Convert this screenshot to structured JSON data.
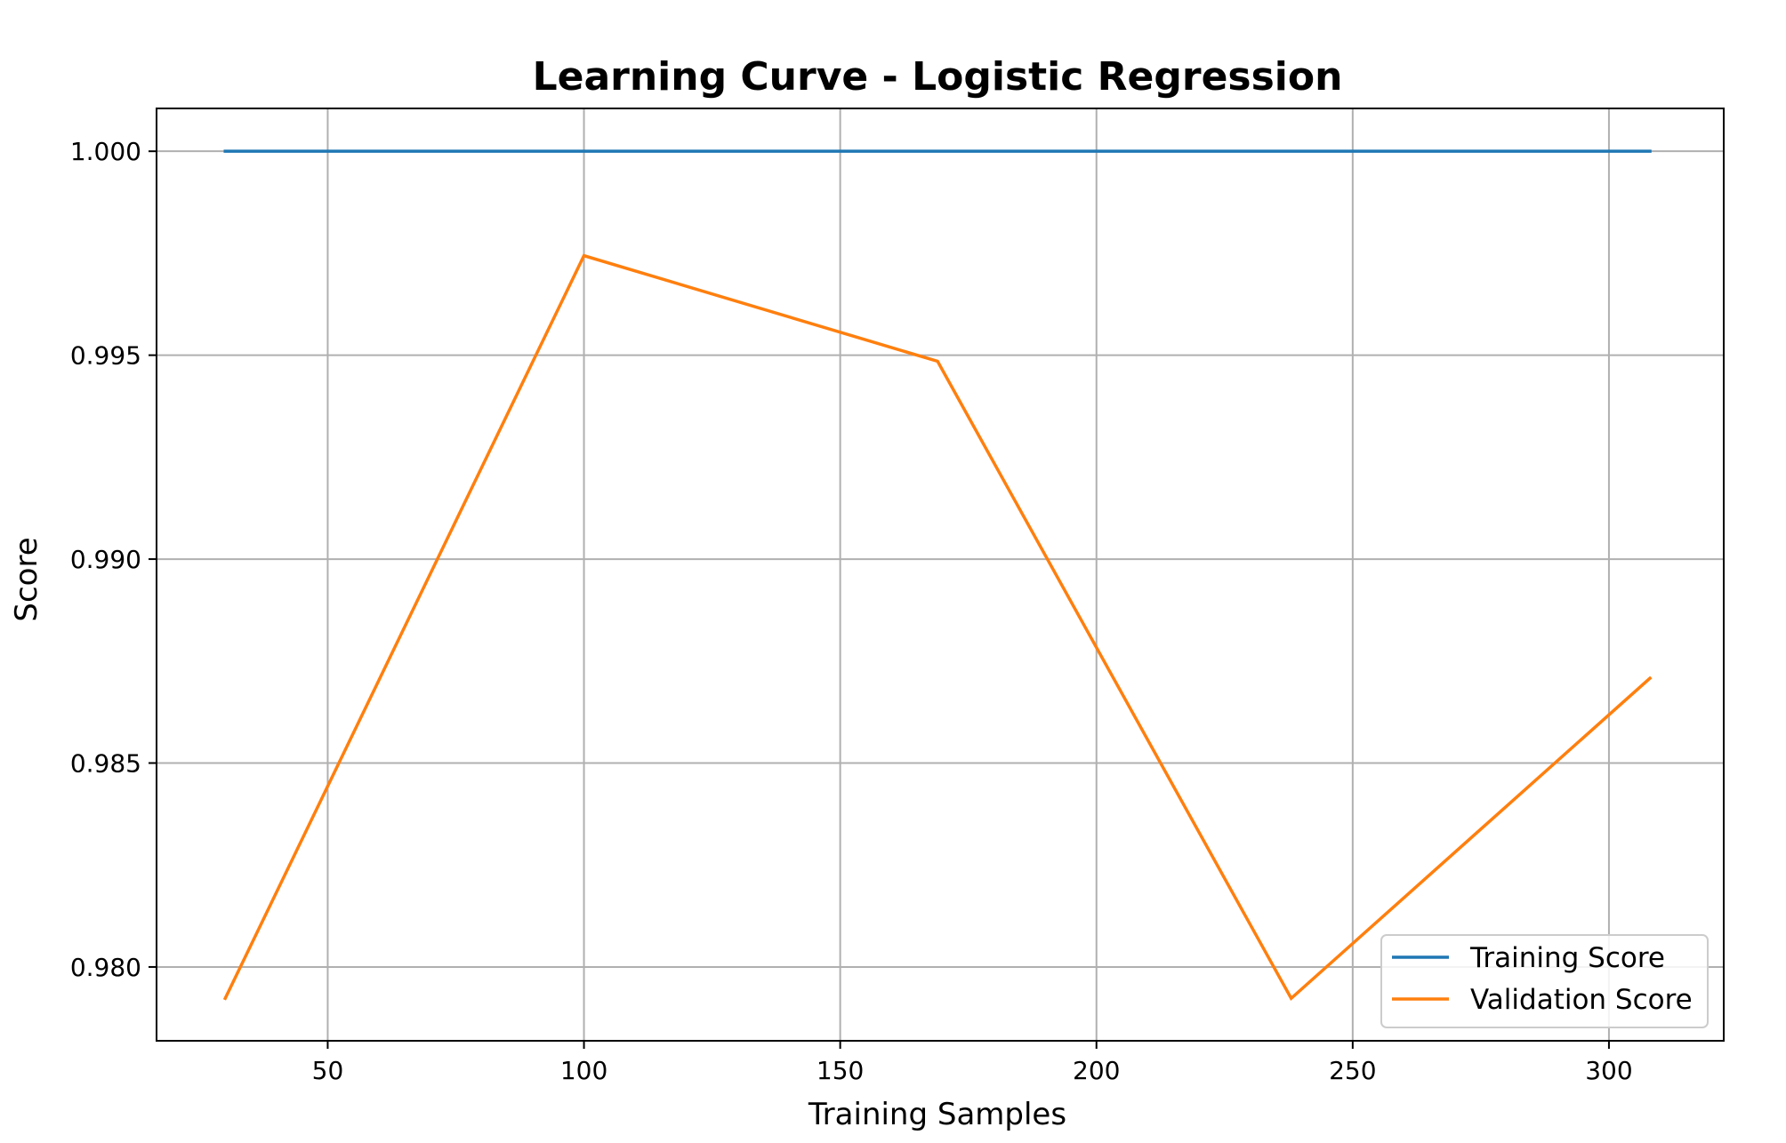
{
  "chart_data": {
    "type": "line",
    "title": "Learning Curve - Logistic Regression",
    "xlabel": "Training Samples",
    "ylabel": "Score",
    "xlim": [
      16.6,
      322.4
    ],
    "ylim": [
      0.97819,
      1.00105
    ],
    "x": [
      30,
      100,
      169,
      238,
      308
    ],
    "x_ticks": [
      50,
      100,
      150,
      200,
      250,
      300
    ],
    "x_tick_labels": [
      "50",
      "100",
      "150",
      "200",
      "250",
      "300"
    ],
    "y_ticks": [
      0.98,
      0.985,
      0.99,
      0.995,
      1.0
    ],
    "y_tick_labels": [
      "0.980",
      "0.985",
      "0.990",
      "0.995",
      "1.000"
    ],
    "grid": true,
    "legend_position": "lower right",
    "series": [
      {
        "name": "Training Score",
        "color": "#1f77b4",
        "values": [
          1.0,
          1.0,
          1.0,
          1.0,
          1.0
        ]
      },
      {
        "name": "Validation Score",
        "color": "#ff7f0e",
        "values": [
          0.97923,
          0.99744,
          0.99485,
          0.97923,
          0.98708
        ]
      }
    ]
  }
}
